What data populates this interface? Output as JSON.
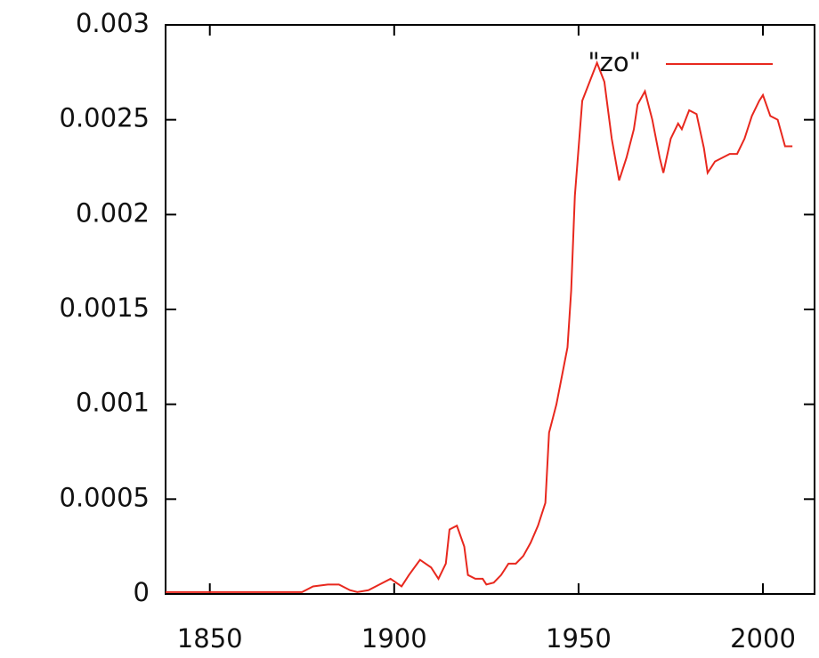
{
  "chart_data": {
    "type": "line",
    "x": [
      1838,
      1845,
      1855,
      1865,
      1875,
      1878,
      1882,
      1885,
      1888,
      1890,
      1893,
      1896,
      1899,
      1902,
      1904,
      1907,
      1910,
      1912,
      1914,
      1915,
      1917,
      1919,
      1920,
      1922,
      1924,
      1925,
      1927,
      1929,
      1931,
      1933,
      1935,
      1937,
      1939,
      1941,
      1942,
      1944,
      1946,
      1947,
      1948,
      1949,
      1951,
      1953,
      1955,
      1957,
      1959,
      1961,
      1963,
      1965,
      1966,
      1968,
      1970,
      1972,
      1973,
      1975,
      1977,
      1978,
      1980,
      1982,
      1984,
      1985,
      1987,
      1989,
      1991,
      1993,
      1995,
      1997,
      1999,
      2000,
      2002,
      2004,
      2006,
      2008
    ],
    "series": [
      {
        "name": "\"zo\"",
        "color": "#e8281e",
        "values": [
          1e-05,
          1e-05,
          1e-05,
          1e-05,
          1e-05,
          4e-05,
          5e-05,
          5e-05,
          2e-05,
          1e-05,
          2e-05,
          5e-05,
          8e-05,
          4e-05,
          0.0001,
          0.00018,
          0.00014,
          8e-05,
          0.00016,
          0.00034,
          0.00036,
          0.00025,
          0.0001,
          8e-05,
          8e-05,
          5e-05,
          6e-05,
          0.0001,
          0.00016,
          0.00016,
          0.0002,
          0.00027,
          0.00036,
          0.00048,
          0.00085,
          0.001,
          0.0012,
          0.0013,
          0.0016,
          0.0021,
          0.0026,
          0.0027,
          0.0028,
          0.0027,
          0.0024,
          0.00218,
          0.0023,
          0.00245,
          0.00258,
          0.00265,
          0.0025,
          0.0023,
          0.00222,
          0.0024,
          0.00248,
          0.00245,
          0.00255,
          0.00253,
          0.00235,
          0.00222,
          0.00228,
          0.0023,
          0.00232,
          0.00232,
          0.0024,
          0.00252,
          0.0026,
          0.00263,
          0.00252,
          0.0025,
          0.00236,
          0.00236
        ]
      }
    ],
    "xlim": [
      1838,
      2014
    ],
    "xticks": [
      1850,
      1900,
      1950,
      2000
    ],
    "ylim": [
      0,
      0.003
    ],
    "yticks": [
      0,
      0.0005,
      0.001,
      0.0015,
      0.002,
      0.0025,
      0.003
    ],
    "legend": "top-right"
  }
}
